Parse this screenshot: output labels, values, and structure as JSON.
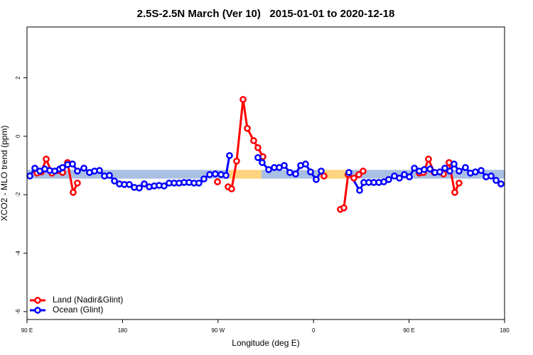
{
  "chart_data": {
    "type": "line",
    "title": "2.5S-2.5N March (Ver 10)   2015-01-01 to 2020-12-18",
    "x_label": "Longitude (deg E)",
    "y_label": "XCO2 - MLO trend (ppm)",
    "xlim": [
      90,
      540
    ],
    "ylim": [
      -6.27,
      3.74
    ],
    "xticks": [
      {
        "value": 90,
        "label": "90 E"
      },
      180,
      {
        "value": 270,
        "label": "90 W"
      },
      {
        "value": 360,
        "label": "0"
      },
      {
        "value": 450,
        "label": "90 E"
      },
      {
        "value": 540,
        "label": "180"
      }
    ],
    "yticks": [
      -6,
      -4,
      -2,
      0,
      2
    ],
    "legend_position": "bottom-left",
    "bands": [
      {
        "x0": 90,
        "x1": 280,
        "ymin": -1.45,
        "ymax": -1.15,
        "color": "#a9bfe3"
      },
      {
        "x0": 280,
        "x1": 311,
        "ymin": -1.45,
        "ymax": -1.15,
        "color": "#ffd47f"
      },
      {
        "x0": 311,
        "x1": 364,
        "ymin": -1.45,
        "ymax": -1.15,
        "color": "#a9bfe3"
      },
      {
        "x0": 364,
        "x1": 393,
        "ymin": -1.45,
        "ymax": -1.15,
        "color": "#ffd47f"
      },
      {
        "x0": 393,
        "x1": 540,
        "ymin": -1.45,
        "ymax": -1.15,
        "color": "#a9bfe3"
      }
    ],
    "series": [
      {
        "name": "Land (Nadir&Glint)",
        "color": "#ff0000",
        "x": [
          99.4,
          103.4,
          108.1,
          113.4,
          123.5,
          128.2,
          133.5,
          137.5,
          null,
          269.5,
          null,
          279.5,
          282.8,
          287.5,
          293.6,
          297.6,
          303.6,
          307.6,
          312.3,
          null,
          369.9,
          null,
          385.3,
          388.6,
          392.6,
          398,
          402.7,
          406.7,
          null,
          459.6,
          463.6,
          468.3,
          473.7,
          482.4,
          487.7,
          493.1,
          497.1
        ],
        "values": [
          -1.26,
          -1.22,
          -0.78,
          -1.26,
          -1.24,
          -0.9,
          -1.92,
          -1.6,
          null,
          -1.56,
          null,
          -1.73,
          -1.8,
          -0.85,
          1.26,
          0.27,
          -0.15,
          -0.39,
          -0.7,
          null,
          -1.36,
          null,
          -2.5,
          -2.45,
          -1.31,
          -1.43,
          -1.31,
          -1.19,
          null,
          -1.26,
          -1.24,
          -0.78,
          -1.24,
          -1.29,
          -0.9,
          -1.92,
          -1.6
        ]
      },
      {
        "name": "Ocean (Glint)",
        "color": "#0000ff",
        "x": [
          92.7,
          97.4,
          102.1,
          106.7,
          111.4,
          116.1,
          120.8,
          123.5,
          128.2,
          132.9,
          137.5,
          143.6,
          148.9,
          153.6,
          158.3,
          163,
          167.7,
          172.4,
          177.1,
          181.7,
          186.4,
          191.1,
          195.8,
          200.5,
          205.2,
          209.9,
          214.5,
          219.2,
          223.9,
          228.6,
          233.3,
          238,
          242.7,
          247.4,
          252,
          256.7,
          262.1,
          267.4,
          272.8,
          277.5,
          280.8,
          null,
          307.6,
          311.6,
          317.7,
          323,
          327.7,
          332.4,
          337.7,
          343.1,
          347.8,
          352.5,
          357.2,
          362.5,
          367.2,
          null,
          393.3,
          403.4,
          407.4,
          412.1,
          416.8,
          421.5,
          426.2,
          430.8,
          436.2,
          440.9,
          445.6,
          450.3,
          455,
          459.6,
          464.3,
          469.7,
          474.3,
          479,
          483.7,
          488.4,
          492.4,
          497.1,
          503.1,
          507.8,
          512.5,
          517.9,
          522.6,
          527.3,
          532,
          536.6
        ],
        "values": [
          -1.36,
          -1.09,
          -1.19,
          -1.12,
          -1.17,
          -1.19,
          -1.12,
          -1.07,
          -0.97,
          -0.95,
          -1.19,
          -1.09,
          -1.24,
          -1.19,
          -1.17,
          -1.36,
          -1.34,
          -1.53,
          -1.63,
          -1.65,
          -1.65,
          -1.75,
          -1.77,
          -1.63,
          -1.73,
          -1.7,
          -1.68,
          -1.7,
          -1.6,
          -1.6,
          -1.6,
          -1.58,
          -1.58,
          -1.6,
          -1.6,
          -1.46,
          -1.31,
          -1.29,
          -1.31,
          -1.34,
          -0.66,
          null,
          -0.73,
          -0.9,
          -1.14,
          -1.07,
          -1.07,
          -1.0,
          -1.24,
          -1.29,
          -1.0,
          -0.95,
          -1.22,
          -1.48,
          -1.19,
          null,
          -1.24,
          -1.85,
          -1.58,
          -1.58,
          -1.58,
          -1.58,
          -1.56,
          -1.48,
          -1.36,
          -1.43,
          -1.31,
          -1.39,
          -1.09,
          -1.19,
          -1.14,
          -1.12,
          -1.24,
          -1.22,
          -1.09,
          -1.19,
          -0.95,
          -1.19,
          -1.07,
          -1.26,
          -1.22,
          -1.17,
          -1.39,
          -1.36,
          -1.51,
          -1.63
        ]
      }
    ]
  }
}
